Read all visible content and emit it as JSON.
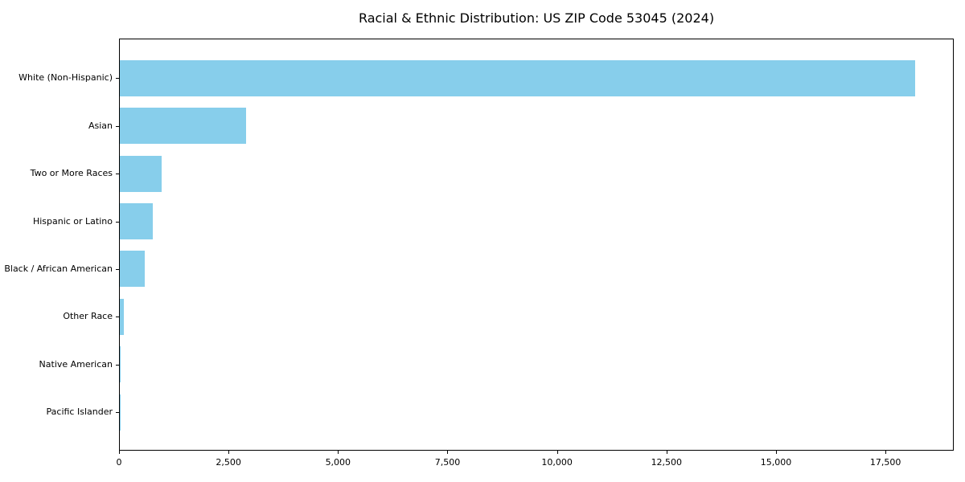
{
  "chart_data": {
    "type": "bar",
    "orientation": "horizontal",
    "title": "Racial & Ethnic Distribution: US ZIP Code 53045 (2024)",
    "categories": [
      "White (Non-Hispanic)",
      "Asian",
      "Two or More Races",
      "Hispanic or Latino",
      "Black / African American",
      "Other Race",
      "Native American",
      "Pacific Islander"
    ],
    "values": [
      18150,
      2880,
      960,
      750,
      560,
      90,
      10,
      5
    ],
    "xlabel": "",
    "ylabel": "",
    "xlim": [
      0,
      19058
    ],
    "xticks": [
      0,
      2500,
      5000,
      7500,
      10000,
      12500,
      15000,
      17500
    ],
    "xtick_labels": [
      "0",
      "2,500",
      "5,000",
      "7,500",
      "10,000",
      "12,500",
      "15,000",
      "17,500"
    ],
    "grid": false,
    "legend": null,
    "bar_color": "#87CEEB",
    "axis_color": "#000000",
    "background": "#FFFFFF"
  }
}
